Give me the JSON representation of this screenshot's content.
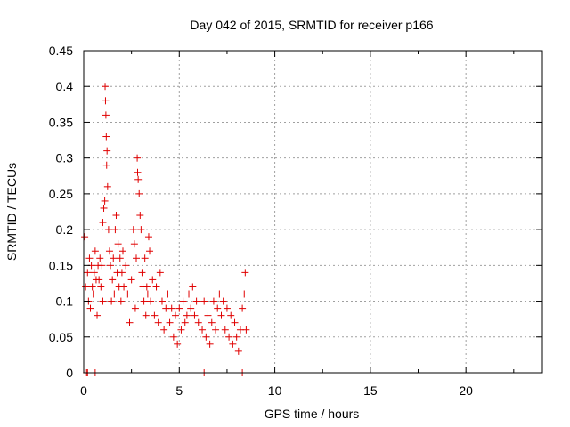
{
  "chart_data": {
    "type": "scatter",
    "title": "Day 042 of 2015, SRMTID for receiver p166",
    "xlabel": "GPS time / hours",
    "ylabel": "SRMTID / TECUs",
    "xlim": [
      0,
      24
    ],
    "ylim": [
      0,
      0.45
    ],
    "xticks": [
      0,
      5,
      10,
      15,
      20
    ],
    "xtick_labels": [
      "0",
      "5",
      "10",
      "15",
      "20"
    ],
    "yticks": [
      0,
      0.05,
      0.1,
      0.15,
      0.2,
      0.25,
      0.3,
      0.35,
      0.4,
      0.45
    ],
    "ytick_labels": [
      "0",
      "0.05",
      "0.1",
      "0.15",
      "0.2",
      "0.25",
      "0.3",
      "0.35",
      "0.4",
      "0.45"
    ],
    "grid": true,
    "marker": "+",
    "marker_color": "#e00000",
    "series": [
      {
        "points": [
          [
            0.05,
            0.19
          ],
          [
            0.1,
            0.12
          ],
          [
            0.2,
            0.14
          ],
          [
            0.25,
            0.1
          ],
          [
            0.3,
            0.16
          ],
          [
            0.35,
            0.09
          ],
          [
            0.4,
            0.15
          ],
          [
            0.45,
            0.12
          ],
          [
            0.5,
            0.11
          ],
          [
            0.55,
            0.14
          ],
          [
            0.6,
            0.17
          ],
          [
            0.65,
            0.13
          ],
          [
            0.7,
            0.08
          ],
          [
            0.75,
            0.15
          ],
          [
            0.8,
            0.13
          ],
          [
            0.85,
            0.16
          ],
          [
            0.9,
            0.12
          ],
          [
            0.95,
            0.15
          ],
          [
            1.0,
            0.1
          ],
          [
            1.0,
            0.21
          ],
          [
            1.05,
            0.23
          ],
          [
            1.1,
            0.24
          ],
          [
            1.12,
            0.4
          ],
          [
            1.14,
            0.38
          ],
          [
            1.16,
            0.36
          ],
          [
            1.18,
            0.33
          ],
          [
            1.2,
            0.29
          ],
          [
            1.22,
            0.31
          ],
          [
            1.25,
            0.26
          ],
          [
            1.3,
            0.2
          ],
          [
            1.35,
            0.17
          ],
          [
            1.4,
            0.15
          ],
          [
            1.45,
            0.1
          ],
          [
            1.5,
            0.13
          ],
          [
            1.55,
            0.16
          ],
          [
            1.6,
            0.11
          ],
          [
            1.65,
            0.2
          ],
          [
            1.7,
            0.22
          ],
          [
            1.75,
            0.14
          ],
          [
            1.8,
            0.18
          ],
          [
            1.85,
            0.12
          ],
          [
            1.9,
            0.16
          ],
          [
            1.95,
            0.1
          ],
          [
            2.0,
            0.14
          ],
          [
            2.05,
            0.17
          ],
          [
            2.1,
            0.12
          ],
          [
            2.2,
            0.15
          ],
          [
            2.3,
            0.11
          ],
          [
            2.4,
            0.07
          ],
          [
            2.5,
            0.13
          ],
          [
            2.6,
            0.2
          ],
          [
            2.65,
            0.18
          ],
          [
            2.7,
            0.09
          ],
          [
            2.75,
            0.16
          ],
          [
            2.8,
            0.3
          ],
          [
            2.82,
            0.28
          ],
          [
            2.85,
            0.27
          ],
          [
            2.9,
            0.25
          ],
          [
            2.95,
            0.22
          ],
          [
            3.0,
            0.2
          ],
          [
            3.05,
            0.14
          ],
          [
            3.1,
            0.12
          ],
          [
            3.15,
            0.1
          ],
          [
            3.2,
            0.16
          ],
          [
            3.25,
            0.08
          ],
          [
            3.3,
            0.12
          ],
          [
            3.35,
            0.11
          ],
          [
            3.4,
            0.19
          ],
          [
            3.45,
            0.17
          ],
          [
            3.5,
            0.1
          ],
          [
            3.6,
            0.13
          ],
          [
            3.7,
            0.08
          ],
          [
            3.8,
            0.12
          ],
          [
            3.9,
            0.07
          ],
          [
            4.0,
            0.14
          ],
          [
            4.1,
            0.1
          ],
          [
            4.2,
            0.06
          ],
          [
            4.3,
            0.09
          ],
          [
            4.4,
            0.11
          ],
          [
            4.5,
            0.07
          ],
          [
            4.6,
            0.09
          ],
          [
            4.7,
            0.05
          ],
          [
            4.8,
            0.08
          ],
          [
            4.9,
            0.04
          ],
          [
            5.0,
            0.09
          ],
          [
            5.1,
            0.06
          ],
          [
            5.2,
            0.1
          ],
          [
            5.3,
            0.07
          ],
          [
            5.4,
            0.08
          ],
          [
            5.5,
            0.11
          ],
          [
            5.6,
            0.09
          ],
          [
            5.7,
            0.12
          ],
          [
            5.8,
            0.08
          ],
          [
            5.9,
            0.1
          ],
          [
            6.0,
            0.07
          ],
          [
            6.2,
            0.06
          ],
          [
            6.3,
            0.1
          ],
          [
            6.4,
            0.05
          ],
          [
            6.5,
            0.08
          ],
          [
            6.6,
            0.04
          ],
          [
            6.7,
            0.07
          ],
          [
            6.8,
            0.1
          ],
          [
            6.9,
            0.06
          ],
          [
            7.0,
            0.09
          ],
          [
            7.1,
            0.11
          ],
          [
            7.2,
            0.08
          ],
          [
            7.3,
            0.1
          ],
          [
            7.4,
            0.06
          ],
          [
            7.5,
            0.09
          ],
          [
            7.6,
            0.05
          ],
          [
            7.7,
            0.08
          ],
          [
            7.8,
            0.04
          ],
          [
            7.9,
            0.07
          ],
          [
            8.0,
            0.05
          ],
          [
            8.1,
            0.03
          ],
          [
            8.2,
            0.06
          ],
          [
            8.3,
            0.09
          ],
          [
            8.4,
            0.11
          ],
          [
            8.45,
            0.14
          ],
          [
            8.5,
            0.06
          ],
          [
            0.15,
            0.0
          ],
          [
            0.2,
            0.0
          ],
          [
            0.6,
            0.0
          ],
          [
            6.3,
            0.0
          ],
          [
            8.3,
            0.0
          ]
        ]
      }
    ]
  }
}
